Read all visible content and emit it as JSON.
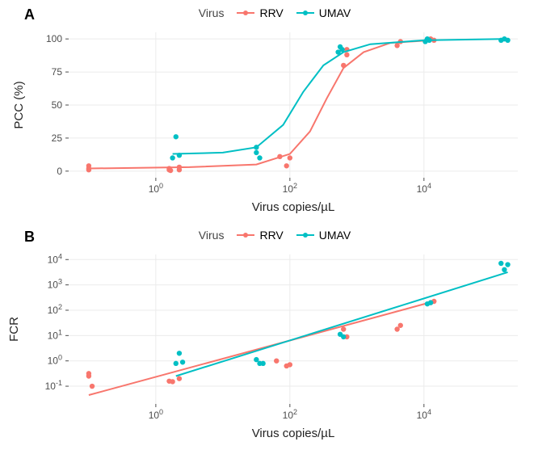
{
  "colors": {
    "RRV": "#f8766d",
    "UMAV": "#00bfc4",
    "grid": "#ebebeb",
    "axis": "#4d4d4d",
    "bg": "#ffffff"
  },
  "legend": {
    "title": "Virus",
    "items": [
      {
        "key": "RRV",
        "label": "RRV"
      },
      {
        "key": "UMAV",
        "label": "UMAV"
      }
    ]
  },
  "panelA": {
    "label": "A",
    "x_label": "Virus copies/µL",
    "y_label": "PCC (%)",
    "type": "scatter-line",
    "x_scale": "log10",
    "y_scale": "linear",
    "x_ticks_log10": [
      0,
      2,
      4
    ],
    "x_tick_labels": [
      "10^0",
      "10^2",
      "10^4"
    ],
    "y_ticks": [
      0,
      25,
      50,
      75,
      100
    ],
    "xlim_log10": [
      -1.3,
      5.4
    ],
    "ylim": [
      -5,
      105
    ],
    "point_radius": 3.2,
    "line_width": 2,
    "series": {
      "RRV": {
        "points": [
          {
            "x": -1.0,
            "y": 4
          },
          {
            "x": -1.0,
            "y": 2
          },
          {
            "x": -1.0,
            "y": 1
          },
          {
            "x": 0.2,
            "y": 1
          },
          {
            "x": 0.2,
            "y": 2
          },
          {
            "x": 0.22,
            "y": 0.5
          },
          {
            "x": 0.35,
            "y": 3
          },
          {
            "x": 0.35,
            "y": 1
          },
          {
            "x": 1.85,
            "y": 11
          },
          {
            "x": 1.95,
            "y": 4
          },
          {
            "x": 2.0,
            "y": 10
          },
          {
            "x": 2.8,
            "y": 80
          },
          {
            "x": 2.85,
            "y": 88
          },
          {
            "x": 2.85,
            "y": 92
          },
          {
            "x": 3.6,
            "y": 95
          },
          {
            "x": 3.65,
            "y": 98
          },
          {
            "x": 4.1,
            "y": 100
          },
          {
            "x": 4.15,
            "y": 99
          }
        ],
        "curve": [
          {
            "x": -1.0,
            "y": 2
          },
          {
            "x": 0.5,
            "y": 3
          },
          {
            "x": 1.5,
            "y": 5
          },
          {
            "x": 2.0,
            "y": 13
          },
          {
            "x": 2.3,
            "y": 30
          },
          {
            "x": 2.55,
            "y": 55
          },
          {
            "x": 2.8,
            "y": 78
          },
          {
            "x": 3.1,
            "y": 90
          },
          {
            "x": 3.5,
            "y": 97
          },
          {
            "x": 4.1,
            "y": 99
          }
        ]
      },
      "UMAV": {
        "points": [
          {
            "x": 0.25,
            "y": 10
          },
          {
            "x": 0.3,
            "y": 26
          },
          {
            "x": 0.35,
            "y": 12
          },
          {
            "x": 1.5,
            "y": 14
          },
          {
            "x": 1.5,
            "y": 18
          },
          {
            "x": 1.55,
            "y": 10
          },
          {
            "x": 2.72,
            "y": 90
          },
          {
            "x": 2.75,
            "y": 94
          },
          {
            "x": 2.78,
            "y": 92
          },
          {
            "x": 4.02,
            "y": 98
          },
          {
            "x": 4.05,
            "y": 100
          },
          {
            "x": 4.08,
            "y": 99
          },
          {
            "x": 5.15,
            "y": 99
          },
          {
            "x": 5.2,
            "y": 100
          },
          {
            "x": 5.25,
            "y": 99
          }
        ],
        "curve": [
          {
            "x": 0.25,
            "y": 13
          },
          {
            "x": 1.0,
            "y": 14
          },
          {
            "x": 1.5,
            "y": 18
          },
          {
            "x": 1.9,
            "y": 35
          },
          {
            "x": 2.2,
            "y": 60
          },
          {
            "x": 2.5,
            "y": 80
          },
          {
            "x": 2.8,
            "y": 90
          },
          {
            "x": 3.2,
            "y": 96
          },
          {
            "x": 4.0,
            "y": 99
          },
          {
            "x": 5.25,
            "y": 100
          }
        ]
      }
    }
  },
  "panelB": {
    "label": "B",
    "x_label": "Virus copies/µL",
    "y_label": "FCR",
    "type": "scatter-line",
    "x_scale": "log10",
    "y_scale": "log10",
    "x_ticks_log10": [
      0,
      2,
      4
    ],
    "x_tick_labels": [
      "10^0",
      "10^2",
      "10^4"
    ],
    "y_ticks_log10": [
      -1,
      0,
      1,
      2,
      3,
      4
    ],
    "y_tick_labels": [
      "10^-1",
      "10^0",
      "10^1",
      "10^2",
      "10^3",
      "10^4"
    ],
    "xlim_log10": [
      -1.3,
      5.4
    ],
    "ylim_log10": [
      -1.7,
      4.2
    ],
    "point_radius": 3.2,
    "line_width": 2,
    "series": {
      "RRV": {
        "points": [
          {
            "x": -1.0,
            "y": -0.6
          },
          {
            "x": -1.0,
            "y": -0.5
          },
          {
            "x": -0.95,
            "y": -1.0
          },
          {
            "x": 0.2,
            "y": -0.8
          },
          {
            "x": 0.25,
            "y": -0.82
          },
          {
            "x": 0.35,
            "y": -0.7
          },
          {
            "x": 1.8,
            "y": 0.0
          },
          {
            "x": 1.95,
            "y": -0.2
          },
          {
            "x": 2.0,
            "y": -0.15
          },
          {
            "x": 2.8,
            "y": 1.25
          },
          {
            "x": 2.85,
            "y": 0.95
          },
          {
            "x": 3.6,
            "y": 1.25
          },
          {
            "x": 3.65,
            "y": 1.4
          },
          {
            "x": 4.1,
            "y": 2.3
          },
          {
            "x": 4.15,
            "y": 2.35
          }
        ],
        "curve": [
          {
            "x": -1.0,
            "y": -1.35
          },
          {
            "x": 4.15,
            "y": 2.35
          }
        ]
      },
      "UMAV": {
        "points": [
          {
            "x": 0.3,
            "y": -0.1
          },
          {
            "x": 0.35,
            "y": 0.3
          },
          {
            "x": 0.4,
            "y": -0.05
          },
          {
            "x": 1.5,
            "y": 0.05
          },
          {
            "x": 1.55,
            "y": -0.1
          },
          {
            "x": 1.6,
            "y": -0.1
          },
          {
            "x": 2.75,
            "y": 1.05
          },
          {
            "x": 2.8,
            "y": 0.95
          },
          {
            "x": 4.05,
            "y": 2.25
          },
          {
            "x": 4.1,
            "y": 2.3
          },
          {
            "x": 5.15,
            "y": 3.85
          },
          {
            "x": 5.2,
            "y": 3.6
          },
          {
            "x": 5.25,
            "y": 3.8
          }
        ],
        "curve": [
          {
            "x": 0.3,
            "y": -0.6
          },
          {
            "x": 5.25,
            "y": 3.5
          }
        ]
      }
    }
  }
}
